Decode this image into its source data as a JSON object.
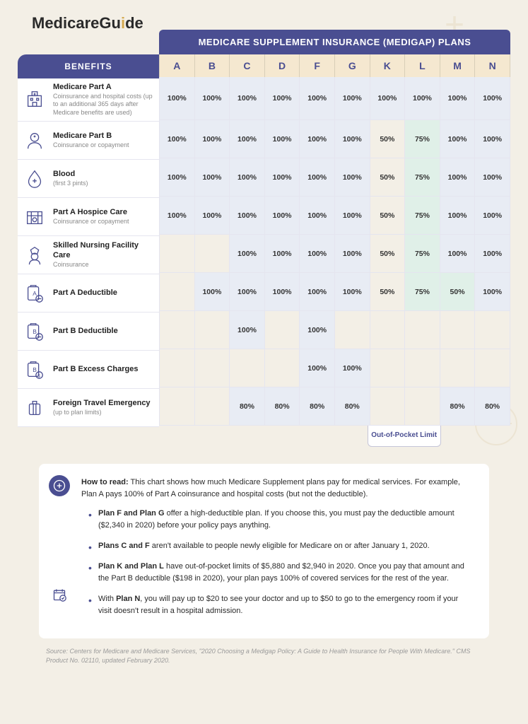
{
  "logo": {
    "part1": "Medicare",
    "part2": "Gu",
    "part3": "i",
    "part4": "de"
  },
  "header_title": "MEDICARE SUPPLEMENT INSURANCE (MEDIGAP) PLANS",
  "benefits_header": "BENEFITS",
  "plans": [
    "A",
    "B",
    "C",
    "D",
    "F",
    "G",
    "K",
    "L",
    "M",
    "N"
  ],
  "rows": [
    {
      "title": "Medicare Part A",
      "sub": "Coinsurance and hospital costs (up to an additional 365 days after Medicare benefits are used)",
      "cells": [
        "100%",
        "100%",
        "100%",
        "100%",
        "100%",
        "100%",
        "100%",
        "100%",
        "100%",
        "100%"
      ],
      "hl": {
        "6": "",
        "7": ""
      }
    },
    {
      "title": "Medicare Part B",
      "sub": "Coinsurance or copayment",
      "cells": [
        "100%",
        "100%",
        "100%",
        "100%",
        "100%",
        "100%",
        "50%",
        "75%",
        "100%",
        "100%"
      ],
      "hl": {
        "6": "w",
        "7": "g"
      }
    },
    {
      "title": "Blood",
      "sub": "(first 3 pints)",
      "cells": [
        "100%",
        "100%",
        "100%",
        "100%",
        "100%",
        "100%",
        "50%",
        "75%",
        "100%",
        "100%"
      ],
      "hl": {
        "6": "w",
        "7": "g"
      }
    },
    {
      "title": "Part A Hospice Care",
      "sub": "Coinsurance or copayment",
      "cells": [
        "100%",
        "100%",
        "100%",
        "100%",
        "100%",
        "100%",
        "50%",
        "75%",
        "100%",
        "100%"
      ],
      "hl": {
        "6": "w",
        "7": "g"
      }
    },
    {
      "title": "Skilled Nursing Facility Care",
      "sub": "Coinsurance",
      "cells": [
        "",
        "",
        "100%",
        "100%",
        "100%",
        "100%",
        "50%",
        "75%",
        "100%",
        "100%"
      ],
      "hl": {
        "6": "w",
        "7": "g"
      }
    },
    {
      "title": "Part A Deductible",
      "sub": "",
      "cells": [
        "",
        "100%",
        "100%",
        "100%",
        "100%",
        "100%",
        "50%",
        "75%",
        "50%",
        "100%"
      ],
      "hl": {
        "6": "w",
        "7": "g",
        "8": "g"
      }
    },
    {
      "title": "Part B Deductible",
      "sub": "",
      "cells": [
        "",
        "",
        "100%",
        "",
        "100%",
        "",
        "",
        "",
        "",
        ""
      ],
      "hl": {}
    },
    {
      "title": "Part B Excess Charges",
      "sub": "",
      "cells": [
        "",
        "",
        "",
        "",
        "100%",
        "100%",
        "",
        "",
        "",
        ""
      ],
      "hl": {}
    },
    {
      "title": "Foreign Travel Emergency",
      "sub": "(up to plan limits)",
      "cells": [
        "",
        "",
        "80%",
        "80%",
        "80%",
        "80%",
        "",
        "",
        "80%",
        "80%"
      ],
      "hl": {}
    }
  ],
  "icons": [
    "hospital",
    "doctor",
    "blood",
    "hospice",
    "nurse",
    "dedA",
    "dedB",
    "excess",
    "travel"
  ],
  "oop_label": "Out-of-Pocket Limit",
  "notes": {
    "intro_b": "How to read:",
    "intro": " This chart shows how much Medicare Supplement plans pay for medical services. For example, Plan A pays 100% of Part A coinsurance and hospital costs (but not the deductible).",
    "items": [
      {
        "b": "Plan F and Plan G",
        "t": " offer a high-deductible plan. If you choose this, you must pay the deductible amount ($2,340 in 2020) before your policy pays anything."
      },
      {
        "b": "Plans C and F",
        "t": " aren't available to people newly eligible for Medicare on or after January 1, 2020."
      },
      {
        "b": "Plan K and Plan L",
        "t": " have out-of-pocket limits of $5,880 and $2,940 in 2020. Once you pay that amount and the Part B deductible ($198 in 2020), your plan pays 100% of covered services for the rest of the year."
      },
      {
        "b2": "Plan N",
        "pre": "With ",
        "t": ", you will pay up to $20 to see your doctor and up to $50 to go to the emergency room if your visit doesn't result in a hospital admission."
      }
    ]
  },
  "source": "Source: Centers for Medicare and Medicare Services, \"2020 Choosing a Medigap Policy: A Guide to Health Insurance for People With Medicare.\" CMS Product No. 02110, updated February 2020.",
  "colors": {
    "brand": "#4a4e91",
    "head_bg": "#f5e8d0",
    "shade": "#e8ecf4",
    "green": "#e0f0e8",
    "page_bg": "#f3efe6"
  }
}
